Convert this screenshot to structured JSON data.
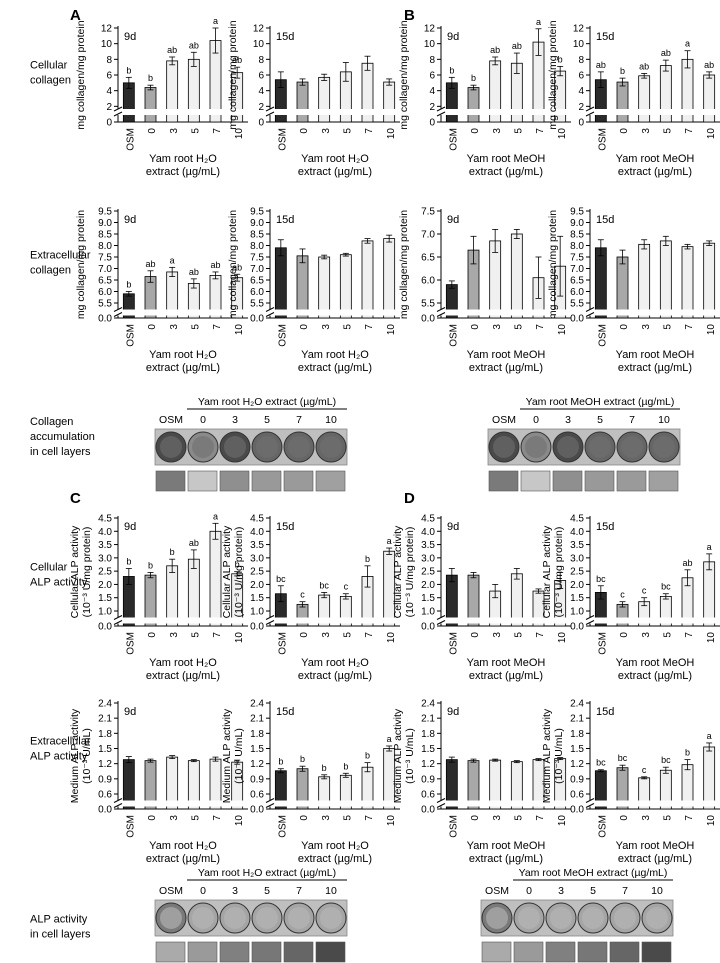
{
  "panel_labels": [
    "A",
    "B",
    "C",
    "D"
  ],
  "row_labels": {
    "cellular_collagen": [
      "Cellular",
      "collagen"
    ],
    "extracellular_collagen": [
      "Extracellular",
      "collagen"
    ],
    "collagen_accumulation": [
      "Collagen",
      "accumulation",
      "in cell layers"
    ],
    "cellular_alp": [
      "Cellular",
      "ALP activity"
    ],
    "extracellular_alp": [
      "Extracellular",
      "ALP activity"
    ],
    "alp_cell_layers": [
      "ALP activity",
      "in cell layers"
    ]
  },
  "categories": [
    "OSM",
    "0",
    "3",
    "5",
    "7",
    "10"
  ],
  "xlabels": {
    "water": [
      "Yam root H₂O",
      "extract (µg/mL)"
    ],
    "meoh_a": [
      "Yam root MeOH",
      "extract (µg/mL)"
    ],
    "meoh_b": [
      "Yam root MeOH",
      "extract (µg/mL)"
    ]
  },
  "plate_headers": {
    "water": "Yam root H₂O extract (µg/mL)",
    "meoh": "Yam root MeOH extract (µg/mL)"
  },
  "plate_columns": [
    "OSM",
    "0",
    "3",
    "5",
    "7",
    "10"
  ],
  "chart_data": [
    {
      "id": "A9",
      "type": "bar",
      "day": "9d",
      "ylabel": [
        "mg collagen/mg protein"
      ],
      "ylim": [
        0,
        12
      ],
      "ticks": [
        "0",
        "2",
        "4",
        "6",
        "8",
        "10",
        "12"
      ],
      "break": true,
      "values": [
        5.0,
        4.4,
        7.8,
        8.0,
        10.4,
        6.3
      ],
      "errors": [
        0.7,
        0.3,
        0.5,
        0.9,
        1.6,
        0.7
      ],
      "letters": [
        "b",
        "b",
        "ab",
        "ab",
        "a",
        "ab"
      ],
      "xlabel": "water"
    },
    {
      "id": "A15",
      "type": "bar",
      "day": "15d",
      "ylabel": [
        "mg collagen/mg protein"
      ],
      "ylim": [
        0,
        12
      ],
      "ticks": [
        "0",
        "2",
        "4",
        "6",
        "8",
        "10",
        "12"
      ],
      "break": true,
      "values": [
        5.4,
        5.1,
        5.7,
        6.4,
        7.5,
        5.1
      ],
      "errors": [
        1.0,
        0.4,
        0.4,
        1.2,
        0.9,
        0.4
      ],
      "letters": [
        "",
        "",
        "",
        "",
        "",
        ""
      ],
      "xlabel": "water"
    },
    {
      "id": "B9",
      "type": "bar",
      "day": "9d",
      "ylabel": [
        "mg collagen/mg protein"
      ],
      "ylim": [
        0,
        12
      ],
      "ticks": [
        "0",
        "2",
        "4",
        "6",
        "8",
        "10",
        "12"
      ],
      "break": true,
      "values": [
        5.0,
        4.4,
        7.8,
        7.5,
        10.2,
        6.5
      ],
      "errors": [
        0.7,
        0.3,
        0.5,
        1.3,
        1.7,
        0.6
      ],
      "letters": [
        "b",
        "b",
        "ab",
        "ab",
        "a",
        "b"
      ],
      "xlabel": "meoh_a"
    },
    {
      "id": "B15",
      "type": "bar",
      "day": "15d",
      "ylabel": [
        "mg collagen/mg protein"
      ],
      "ylim": [
        0,
        12
      ],
      "ticks": [
        "0",
        "2",
        "4",
        "6",
        "8",
        "10",
        "12"
      ],
      "break": true,
      "values": [
        5.4,
        5.1,
        5.9,
        7.2,
        8.0,
        6.0
      ],
      "errors": [
        1.0,
        0.5,
        0.3,
        0.7,
        1.1,
        0.4
      ],
      "letters": [
        "ab",
        "b",
        "ab",
        "ab",
        "a",
        "ab"
      ],
      "xlabel": "meoh_a"
    },
    {
      "id": "A9e",
      "type": "bar",
      "day": "9d",
      "ylabel": [
        "mg collagen/mg protein"
      ],
      "ylim": [
        5.5,
        9.5
      ],
      "ticks": [
        "0.0",
        "5.5",
        "6.0",
        "6.5",
        "7.0",
        "7.5",
        "8.0",
        "8.5",
        "9.0",
        "9.5"
      ],
      "break": true,
      "base": 0,
      "values": [
        5.9,
        6.65,
        6.85,
        6.35,
        6.7,
        6.6
      ],
      "errors": [
        0.1,
        0.25,
        0.2,
        0.2,
        0.15,
        0.15
      ],
      "letters": [
        "b",
        "ab",
        "a",
        "ab",
        "ab",
        "ab"
      ],
      "xlabel": "water"
    },
    {
      "id": "A15e",
      "type": "bar",
      "day": "15d",
      "ylabel": [
        "mg collagen/mg protein"
      ],
      "ylim": [
        5.5,
        9.5
      ],
      "ticks": [
        "0.0",
        "5.5",
        "6.0",
        "6.5",
        "7.0",
        "7.5",
        "8.0",
        "8.5",
        "9.0",
        "9.5"
      ],
      "break": true,
      "base": 0,
      "values": [
        7.9,
        7.55,
        7.5,
        7.6,
        8.2,
        8.3
      ],
      "errors": [
        0.35,
        0.3,
        0.08,
        0.06,
        0.1,
        0.15
      ],
      "letters": [
        "",
        "",
        "",
        "",
        "",
        ""
      ],
      "xlabel": "water"
    },
    {
      "id": "B9e",
      "type": "bar",
      "day": "9d",
      "ylabel": [
        "mg collagen/mg protein"
      ],
      "ylim": [
        5.5,
        7.5
      ],
      "ticks": [
        "0.0",
        "5.5",
        "6.0",
        "6.5",
        "7.0",
        "7.5"
      ],
      "break": true,
      "base": 0,
      "values": [
        5.9,
        6.65,
        6.85,
        7.0,
        6.05,
        6.3
      ],
      "errors": [
        0.08,
        0.3,
        0.25,
        0.1,
        0.45,
        0.65
      ],
      "letters": [
        "",
        "",
        "",
        "",
        "",
        ""
      ],
      "xlabel": "meoh_b"
    },
    {
      "id": "B15e",
      "type": "bar",
      "day": "15d",
      "ylabel": [
        "mg collagen/mg protein"
      ],
      "ylim": [
        5.5,
        9.5
      ],
      "ticks": [
        "0.0",
        "5.5",
        "6.0",
        "6.5",
        "7.0",
        "7.5",
        "8.0",
        "8.5",
        "9.0",
        "9.5"
      ],
      "break": true,
      "base": 0,
      "values": [
        7.9,
        7.5,
        8.05,
        8.2,
        7.95,
        8.1
      ],
      "errors": [
        0.35,
        0.3,
        0.2,
        0.2,
        0.1,
        0.1
      ],
      "letters": [
        "",
        "",
        "",
        "",
        "",
        ""
      ],
      "xlabel": "meoh_b"
    },
    {
      "id": "C9",
      "type": "bar",
      "day": "9d",
      "ylabel": [
        "Cellular ALP activity",
        "(10⁻³ U/mg protein)"
      ],
      "ylim": [
        1.0,
        4.5
      ],
      "ticks": [
        "0.0",
        "1.0",
        "1.5",
        "2.0",
        "2.5",
        "3.0",
        "3.5",
        "4.0",
        "4.5"
      ],
      "break": true,
      "base": 0,
      "values": [
        2.3,
        2.35,
        2.7,
        2.95,
        4.0,
        2.4
      ],
      "errors": [
        0.3,
        0.1,
        0.25,
        0.35,
        0.3,
        0.08
      ],
      "letters": [
        "b",
        "b",
        "b",
        "ab",
        "a",
        "b"
      ],
      "xlabel": "water"
    },
    {
      "id": "C15",
      "type": "bar",
      "day": "15d",
      "ylabel": [
        "Cellular ALP activity",
        "(10⁻³ U/mg protein)"
      ],
      "ylim": [
        1.0,
        4.5
      ],
      "ticks": [
        "0.0",
        "1.0",
        "1.5",
        "2.0",
        "2.5",
        "3.0",
        "3.5",
        "4.0",
        "4.5"
      ],
      "break": true,
      "base": 0,
      "values": [
        1.65,
        1.25,
        1.6,
        1.55,
        2.3,
        3.25
      ],
      "errors": [
        0.3,
        0.1,
        0.1,
        0.1,
        0.4,
        0.12
      ],
      "letters": [
        "bc",
        "c",
        "bc",
        "c",
        "b",
        "a"
      ],
      "xlabel": "water"
    },
    {
      "id": "D9",
      "type": "bar",
      "day": "9d",
      "ylabel": [
        "Cellular ALP activity",
        "(10⁻³ U/mg protein)"
      ],
      "ylim": [
        1.0,
        4.5
      ],
      "ticks": [
        "0.0",
        "1.0",
        "1.5",
        "2.0",
        "2.5",
        "3.0",
        "3.5",
        "4.0",
        "4.5"
      ],
      "break": true,
      "base": 0,
      "values": [
        2.35,
        2.35,
        1.75,
        2.4,
        1.75,
        2.15
      ],
      "errors": [
        0.25,
        0.1,
        0.25,
        0.2,
        0.08,
        0.3
      ],
      "letters": [
        "",
        "",
        "",
        "",
        "",
        ""
      ],
      "xlabel": "meoh_b"
    },
    {
      "id": "D15",
      "type": "bar",
      "day": "15d",
      "ylabel": [
        "Cellular ALP activity",
        "(10⁻³ U/mg protein)"
      ],
      "ylim": [
        1.0,
        4.5
      ],
      "ticks": [
        "0.0",
        "1.0",
        "1.5",
        "2.0",
        "2.5",
        "3.0",
        "3.5",
        "4.0",
        "4.5"
      ],
      "break": true,
      "base": 0,
      "values": [
        1.7,
        1.25,
        1.35,
        1.55,
        2.25,
        2.85
      ],
      "errors": [
        0.25,
        0.1,
        0.15,
        0.1,
        0.3,
        0.3
      ],
      "letters": [
        "bc",
        "c",
        "c",
        "bc",
        "ab",
        "a"
      ],
      "xlabel": "meoh_b"
    },
    {
      "id": "C9e",
      "type": "bar",
      "day": "9d",
      "ylabel": [
        "Medium ALP activity",
        "(10⁻³ U/mL)"
      ],
      "ylim": [
        0.6,
        2.4
      ],
      "ticks": [
        "0.0",
        "0.6",
        "0.9",
        "1.2",
        "1.5",
        "1.8",
        "2.1",
        "2.4"
      ],
      "break": true,
      "base": 0,
      "values": [
        1.28,
        1.26,
        1.33,
        1.26,
        1.29,
        1.23
      ],
      "errors": [
        0.06,
        0.03,
        0.03,
        0.02,
        0.04,
        0.04
      ],
      "letters": [
        "",
        "",
        "",
        "",
        "",
        ""
      ],
      "xlabel": "water"
    },
    {
      "id": "C15e",
      "type": "bar",
      "day": "15d",
      "ylabel": [
        "Medium ALP activity",
        "(10⁻³ U/mL)"
      ],
      "ylim": [
        0.6,
        2.4
      ],
      "ticks": [
        "0.0",
        "0.6",
        "0.9",
        "1.2",
        "1.5",
        "1.8",
        "2.1",
        "2.4"
      ],
      "break": true,
      "base": 0,
      "values": [
        1.06,
        1.1,
        0.94,
        0.97,
        1.13,
        1.5
      ],
      "errors": [
        0.04,
        0.05,
        0.04,
        0.04,
        0.09,
        0.05
      ],
      "letters": [
        "b",
        "b",
        "b",
        "b",
        "b",
        "a"
      ],
      "xlabel": "water"
    },
    {
      "id": "D9e",
      "type": "bar",
      "day": "9d",
      "ylabel": [
        "Medium ALP activity",
        "(10⁻³ U/mL)"
      ],
      "ylim": [
        0.6,
        2.4
      ],
      "ticks": [
        "0.0",
        "0.6",
        "0.9",
        "1.2",
        "1.5",
        "1.8",
        "2.1",
        "2.4"
      ],
      "break": true,
      "base": 0,
      "values": [
        1.28,
        1.26,
        1.27,
        1.24,
        1.28,
        1.3
      ],
      "errors": [
        0.05,
        0.03,
        0.02,
        0.02,
        0.02,
        0.02
      ],
      "letters": [
        "",
        "",
        "",
        "",
        "",
        ""
      ],
      "xlabel": "meoh_b"
    },
    {
      "id": "D15e",
      "type": "bar",
      "day": "15d",
      "ylabel": [
        "Medium ALP activity",
        "(10⁻³ U/mL)"
      ],
      "ylim": [
        0.6,
        2.4
      ],
      "ticks": [
        "0.0",
        "0.6",
        "0.9",
        "1.2",
        "1.5",
        "1.8",
        "2.1",
        "2.4"
      ],
      "break": true,
      "base": 0,
      "values": [
        1.06,
        1.12,
        0.92,
        1.07,
        1.18,
        1.53
      ],
      "errors": [
        0.02,
        0.05,
        0.02,
        0.06,
        0.1,
        0.08
      ],
      "letters": [
        "bc",
        "bc",
        "c",
        "bc",
        "b",
        "a"
      ],
      "xlabel": "meoh_b"
    }
  ],
  "colors": {
    "osm": "#2a2a2a",
    "zero": "#a8a8a8",
    "extract": "#f0f0f0",
    "axis": "#000000",
    "well_dark": "#555555",
    "well_light": "#bdbdbd",
    "strip": "#d8d8d8"
  }
}
